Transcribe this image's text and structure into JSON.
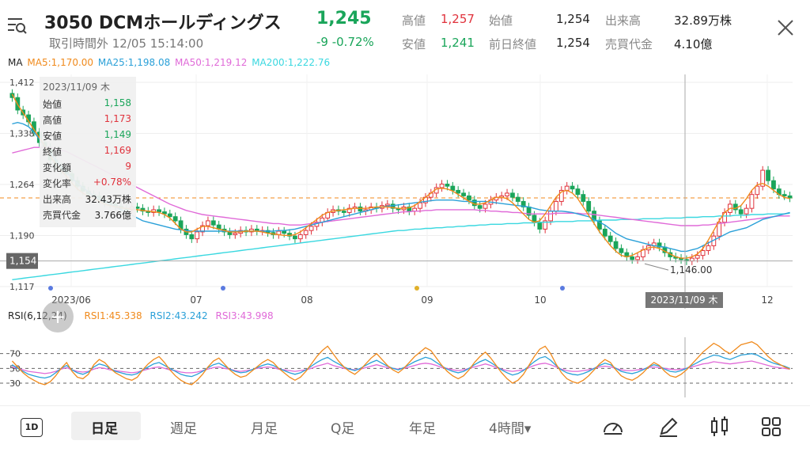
{
  "header": {
    "title": "3050 DCMホールディングス",
    "price": "1,245",
    "subtitle": "取引時間外 12/05 15:14:00",
    "change": "-9 -0.72%",
    "stats": [
      {
        "label": "高値",
        "value": "1,257",
        "color": "#e0323c"
      },
      {
        "label": "始値",
        "value": "1,254",
        "color": "#222222"
      },
      {
        "label": "出来高",
        "value": "32.89万株",
        "color": "#222222"
      },
      {
        "label": "安値",
        "value": "1,241",
        "color": "#1aa55a"
      },
      {
        "label": "前日終値",
        "value": "1,254",
        "color": "#222222"
      },
      {
        "label": "売買代金",
        "value": "4.10億",
        "color": "#222222"
      }
    ]
  },
  "ma_legend": {
    "label": "MA",
    "items": [
      {
        "text": "MA5:1,170.00",
        "color": "#f08a1c"
      },
      {
        "text": "MA25:1,198.08",
        "color": "#2aa0d8"
      },
      {
        "text": "MA50:1,219.12",
        "color": "#e06ad8"
      },
      {
        "text": "MA200:1,222.76",
        "color": "#3ad8e0"
      }
    ]
  },
  "rsi_legend": {
    "label": "RSI(6,12,24)",
    "items": [
      {
        "text": "RSI1:45.338",
        "color": "#f08a1c"
      },
      {
        "text": "RSI2:43.242",
        "color": "#2aa0d8"
      },
      {
        "text": "RSI3:43.998",
        "color": "#e06ad8"
      }
    ]
  },
  "tooltip": {
    "date": "2023/11/09 木",
    "rows": [
      {
        "label": "始値",
        "value": "1,158",
        "color": "#1aa55a"
      },
      {
        "label": "高値",
        "value": "1,173",
        "color": "#e0323c"
      },
      {
        "label": "安値",
        "value": "1,149",
        "color": "#1aa55a"
      },
      {
        "label": "終値",
        "value": "1,169",
        "color": "#e0323c"
      },
      {
        "label": "変化額",
        "value": "9",
        "color": "#e0323c"
      },
      {
        "label": "変化率",
        "value": "+0.78%",
        "color": "#e0323c"
      },
      {
        "label": "出来高",
        "value": "32.43万株",
        "color": "#222222"
      },
      {
        "label": "売買代金",
        "value": "3.766億",
        "color": "#222222"
      }
    ]
  },
  "crosshair": {
    "date_label": "2023/11/09 木",
    "price_label": "1,154"
  },
  "low_marker": "1,146.00",
  "chart_data": {
    "type": "candlestick",
    "ylim": [
      1117,
      1412
    ],
    "y_ticks": [
      "1,412",
      "1,338",
      "1,264",
      "1,190",
      "1,117"
    ],
    "x_ticks": [
      "2023/06",
      "07",
      "08",
      "09",
      "10",
      "12"
    ],
    "last_close_line": 1245,
    "closes": [
      1390,
      1372,
      1365,
      1355,
      1340,
      1325,
      1318,
      1300,
      1290,
      1285,
      1280,
      1270,
      1262,
      1255,
      1250,
      1248,
      1242,
      1238,
      1236,
      1233,
      1230,
      1228,
      1232,
      1230,
      1226,
      1224,
      1228,
      1225,
      1222,
      1218,
      1212,
      1200,
      1192,
      1186,
      1196,
      1205,
      1212,
      1206,
      1200,
      1196,
      1192,
      1194,
      1198,
      1196,
      1200,
      1197,
      1198,
      1195,
      1192,
      1197,
      1194,
      1190,
      1186,
      1192,
      1198,
      1204,
      1210,
      1216,
      1224,
      1228,
      1226,
      1224,
      1230,
      1232,
      1226,
      1228,
      1232,
      1230,
      1234,
      1236,
      1230,
      1228,
      1232,
      1226,
      1230,
      1238,
      1246,
      1252,
      1260,
      1265,
      1262,
      1256,
      1252,
      1248,
      1242,
      1234,
      1230,
      1236,
      1242,
      1246,
      1248,
      1252,
      1246,
      1240,
      1232,
      1220,
      1210,
      1200,
      1212,
      1226,
      1240,
      1256,
      1262,
      1258,
      1250,
      1240,
      1226,
      1212,
      1200,
      1190,
      1182,
      1172,
      1166,
      1160,
      1156,
      1160,
      1170,
      1176,
      1180,
      1174,
      1166,
      1160,
      1158,
      1156,
      1154,
      1158,
      1162,
      1169,
      1176,
      1190,
      1210,
      1224,
      1236,
      1228,
      1222,
      1230,
      1250,
      1262,
      1285,
      1270,
      1258,
      1250,
      1248,
      1245
    ],
    "ma5": [
      1395,
      1380,
      1368,
      1356,
      1344,
      1332,
      1320,
      1306,
      1294,
      1284,
      1276,
      1266,
      1258,
      1252,
      1247,
      1244,
      1240,
      1236,
      1234,
      1232,
      1231,
      1230,
      1229,
      1228,
      1227,
      1226,
      1225,
      1224,
      1221,
      1216,
      1208,
      1200,
      1196,
      1196,
      1200,
      1204,
      1204,
      1202,
      1200,
      1198,
      1196,
      1196,
      1196,
      1197,
      1197,
      1197,
      1196,
      1194,
      1193,
      1192,
      1191,
      1191,
      1192,
      1196,
      1202,
      1208,
      1214,
      1220,
      1224,
      1226,
      1227,
      1228,
      1229,
      1230,
      1230,
      1230,
      1231,
      1232,
      1232,
      1232,
      1231,
      1230,
      1230,
      1231,
      1234,
      1240,
      1246,
      1252,
      1258,
      1259,
      1258,
      1255,
      1250,
      1245,
      1240,
      1236,
      1236,
      1238,
      1242,
      1246,
      1246,
      1244,
      1238,
      1230,
      1222,
      1214,
      1210,
      1212,
      1222,
      1234,
      1246,
      1254,
      1256,
      1252,
      1244,
      1232,
      1220,
      1208,
      1196,
      1186,
      1176,
      1168,
      1162,
      1160,
      1162,
      1166,
      1170,
      1173,
      1174,
      1172,
      1168,
      1164,
      1160,
      1158,
      1158,
      1160,
      1164,
      1172,
      1184,
      1198,
      1212,
      1224,
      1230,
      1230,
      1234,
      1244,
      1256,
      1264,
      1266,
      1262,
      1256,
      1250,
      1246,
      1244
    ],
    "ma25": [
      1352,
      1354,
      1352,
      1348,
      1340,
      1330,
      1320,
      1310,
      1300,
      1290,
      1282,
      1274,
      1266,
      1260,
      1254,
      1248,
      1244,
      1240,
      1236,
      1232,
      1228,
      1224,
      1220,
      1216,
      1212,
      1210,
      1208,
      1206,
      1204,
      1202,
      1200,
      1199,
      1198,
      1197,
      1197,
      1197,
      1197,
      1197,
      1197,
      1197,
      1197,
      1197,
      1197,
      1197,
      1197,
      1197,
      1197,
      1197,
      1197,
      1198,
      1198,
      1199,
      1200,
      1202,
      1204,
      1206,
      1208,
      1210,
      1212,
      1214,
      1216,
      1218,
      1220,
      1222,
      1224,
      1226,
      1228,
      1230,
      1232,
      1233,
      1234,
      1235,
      1236,
      1237,
      1238,
      1239,
      1240,
      1241,
      1242,
      1242,
      1242,
      1242,
      1241,
      1240,
      1240,
      1240,
      1240,
      1240,
      1239,
      1238,
      1237,
      1236,
      1235,
      1234,
      1233,
      1232,
      1230,
      1228,
      1227,
      1226,
      1226,
      1226,
      1225,
      1224,
      1222,
      1220,
      1218,
      1214,
      1210,
      1206,
      1200,
      1194,
      1190,
      1186,
      1184,
      1182,
      1180,
      1178,
      1176,
      1175,
      1174,
      1172,
      1170,
      1168,
      1168,
      1170,
      1172,
      1176,
      1180,
      1184,
      1188,
      1192,
      1196,
      1198,
      1200,
      1202,
      1206,
      1210,
      1214,
      1216,
      1218,
      1220,
      1222,
      1224
    ],
    "ma50": [
      1310,
      1312,
      1314,
      1316,
      1318,
      1318,
      1318,
      1318,
      1316,
      1314,
      1312,
      1308,
      1304,
      1300,
      1296,
      1292,
      1288,
      1284,
      1280,
      1276,
      1272,
      1268,
      1264,
      1260,
      1256,
      1252,
      1248,
      1244,
      1240,
      1236,
      1233,
      1230,
      1227,
      1225,
      1223,
      1221,
      1220,
      1219,
      1218,
      1217,
      1216,
      1215,
      1214,
      1213,
      1212,
      1211,
      1210,
      1209,
      1208,
      1208,
      1207,
      1206,
      1206,
      1206,
      1207,
      1208,
      1209,
      1210,
      1211,
      1212,
      1213,
      1214,
      1215,
      1216,
      1217,
      1218,
      1219,
      1220,
      1221,
      1222,
      1223,
      1224,
      1225,
      1225,
      1226,
      1226,
      1227,
      1227,
      1228,
      1228,
      1228,
      1228,
      1228,
      1228,
      1228,
      1228,
      1227,
      1227,
      1226,
      1226,
      1225,
      1225,
      1224,
      1224,
      1223,
      1222,
      1222,
      1222,
      1222,
      1222,
      1223,
      1223,
      1223,
      1223,
      1223,
      1222,
      1222,
      1221,
      1220,
      1219,
      1218,
      1217,
      1216,
      1215,
      1214,
      1213,
      1212,
      1211,
      1210,
      1209,
      1208,
      1207,
      1206,
      1205,
      1205,
      1205,
      1205,
      1206,
      1206,
      1207,
      1208,
      1209,
      1210,
      1211,
      1212,
      1213,
      1214,
      1215,
      1216,
      1217,
      1218,
      1219,
      1219,
      1219
    ],
    "ma200": [
      1127,
      1128,
      1129,
      1130,
      1131,
      1132,
      1133,
      1134,
      1135,
      1136,
      1137,
      1138,
      1139,
      1140,
      1141,
      1142,
      1143,
      1144,
      1145,
      1146,
      1147,
      1148,
      1149,
      1150,
      1151,
      1152,
      1153,
      1154,
      1155,
      1156,
      1157,
      1158,
      1159,
      1160,
      1161,
      1162,
      1163,
      1164,
      1165,
      1166,
      1167,
      1168,
      1169,
      1170,
      1171,
      1172,
      1173,
      1174,
      1175,
      1176,
      1177,
      1178,
      1179,
      1180,
      1181,
      1182,
      1183,
      1184,
      1185,
      1186,
      1187,
      1188,
      1189,
      1190,
      1191,
      1192,
      1193,
      1194,
      1195,
      1196,
      1197,
      1198,
      1198,
      1199,
      1200,
      1200,
      1201,
      1201,
      1202,
      1202,
      1203,
      1203,
      1204,
      1204,
      1205,
      1205,
      1206,
      1206,
      1207,
      1207,
      1207,
      1208,
      1208,
      1208,
      1209,
      1209,
      1209,
      1210,
      1210,
      1210,
      1211,
      1211,
      1211,
      1211,
      1212,
      1212,
      1212,
      1212,
      1213,
      1213,
      1213,
      1213,
      1214,
      1214,
      1214,
      1214,
      1215,
      1215,
      1215,
      1215,
      1216,
      1216,
      1216,
      1216,
      1217,
      1217,
      1217,
      1218,
      1218,
      1218,
      1219,
      1219,
      1219,
      1220,
      1220,
      1220,
      1221,
      1221,
      1221,
      1222,
      1222,
      1222,
      1222,
      1223
    ],
    "rsi_ticks": [
      "70",
      "50",
      "30"
    ],
    "rsi1": [
      60,
      52,
      44,
      38,
      34,
      30,
      28,
      32,
      40,
      50,
      58,
      46,
      38,
      36,
      42,
      55,
      62,
      58,
      50,
      44,
      40,
      36,
      34,
      38,
      48,
      56,
      62,
      66,
      58,
      48,
      40,
      34,
      30,
      28,
      34,
      42,
      52,
      60,
      64,
      56,
      48,
      42,
      38,
      40,
      46,
      52,
      58,
      62,
      58,
      50,
      44,
      38,
      34,
      38,
      46,
      56,
      66,
      74,
      80,
      70,
      60,
      52,
      46,
      42,
      48,
      56,
      64,
      70,
      62,
      54,
      48,
      44,
      50,
      58,
      66,
      72,
      78,
      74,
      64,
      54,
      46,
      40,
      36,
      40,
      48,
      58,
      66,
      72,
      64,
      54,
      44,
      36,
      30,
      34,
      42,
      54,
      66,
      76,
      80,
      70,
      56,
      44,
      36,
      32,
      30,
      34,
      40,
      48,
      56,
      62,
      58,
      48,
      40,
      36,
      34,
      38,
      44,
      52,
      58,
      54,
      46,
      40,
      38,
      42,
      48,
      56,
      64,
      72,
      78,
      84,
      80,
      74,
      70,
      76,
      82,
      84,
      86,
      82,
      74,
      66,
      60,
      56,
      52,
      49
    ],
    "rsi2": [
      55,
      50,
      46,
      42,
      40,
      38,
      37,
      39,
      44,
      50,
      54,
      48,
      44,
      42,
      45,
      52,
      56,
      54,
      50,
      46,
      44,
      42,
      41,
      43,
      48,
      52,
      56,
      58,
      54,
      50,
      46,
      42,
      40,
      39,
      42,
      46,
      51,
      55,
      57,
      53,
      49,
      46,
      44,
      45,
      48,
      51,
      54,
      56,
      54,
      50,
      47,
      44,
      42,
      44,
      48,
      53,
      58,
      62,
      65,
      60,
      56,
      52,
      49,
      47,
      50,
      54,
      58,
      61,
      57,
      53,
      50,
      48,
      51,
      55,
      59,
      62,
      65,
      63,
      58,
      53,
      49,
      46,
      44,
      46,
      50,
      55,
      59,
      62,
      58,
      53,
      48,
      44,
      41,
      43,
      47,
      53,
      59,
      64,
      66,
      61,
      54,
      48,
      44,
      42,
      41,
      43,
      46,
      50,
      54,
      57,
      55,
      50,
      46,
      44,
      43,
      45,
      48,
      52,
      55,
      53,
      49,
      46,
      45,
      47,
      50,
      54,
      58,
      62,
      65,
      68,
      67,
      64,
      62,
      65,
      68,
      69,
      70,
      68,
      64,
      60,
      57,
      55,
      53,
      50
    ],
    "rsi3": [
      52,
      50,
      48,
      46,
      45,
      44,
      43,
      44,
      46,
      49,
      51,
      48,
      46,
      45,
      46,
      49,
      51,
      50,
      48,
      47,
      46,
      45,
      44,
      45,
      47,
      49,
      51,
      52,
      50,
      48,
      47,
      45,
      44,
      44,
      45,
      47,
      49,
      51,
      52,
      50,
      49,
      47,
      46,
      47,
      48,
      50,
      51,
      52,
      51,
      49,
      48,
      47,
      46,
      47,
      48,
      50,
      53,
      55,
      57,
      54,
      52,
      50,
      49,
      48,
      49,
      51,
      53,
      55,
      53,
      51,
      50,
      49,
      50,
      52,
      54,
      56,
      57,
      56,
      54,
      51,
      50,
      48,
      47,
      48,
      50,
      52,
      54,
      56,
      54,
      51,
      49,
      47,
      46,
      47,
      48,
      51,
      54,
      56,
      57,
      55,
      52,
      49,
      47,
      46,
      46,
      47,
      48,
      50,
      52,
      53,
      52,
      50,
      48,
      47,
      47,
      48,
      49,
      51,
      52,
      51,
      50,
      49,
      48,
      49,
      50,
      52,
      54,
      56,
      57,
      59,
      58,
      57,
      56,
      57,
      58,
      59,
      60,
      58,
      56,
      54,
      52,
      51,
      50,
      49
    ]
  },
  "bottom_tabs": {
    "one_day": "1D",
    "items": [
      "日足",
      "週足",
      "月足",
      "Q足",
      "年足",
      "4時間▾"
    ]
  },
  "icons": [
    "menu-search-icon",
    "close-icon",
    "speedometer-icon",
    "pencil-icon",
    "candlestick-icon",
    "grid-icon",
    "add-icon"
  ]
}
